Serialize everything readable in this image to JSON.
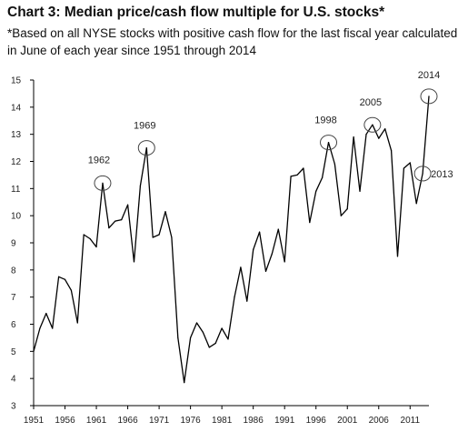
{
  "chart_data": {
    "type": "line",
    "title": "Chart 3: Median price/cash flow multiple for U.S. stocks*",
    "subtitle": "*Based on all NYSE stocks with positive cash flow for the last fiscal year calculated in June of each year since 1951 through 2014",
    "xlabel": "",
    "ylabel": "",
    "ylim": [
      3,
      15
    ],
    "xlim": [
      1951,
      2014
    ],
    "yticks": [
      3,
      4,
      5,
      6,
      7,
      8,
      9,
      10,
      11,
      12,
      13,
      14,
      15
    ],
    "xticks": [
      "1951",
      "1956",
      "1961",
      "1966",
      "1971",
      "1976",
      "1981",
      "1986",
      "1991",
      "1996",
      "2001",
      "2006",
      "2011"
    ],
    "grid": false,
    "series": [
      {
        "color": "#000000",
        "x": [
          1951,
          1952,
          1953,
          1954,
          1955,
          1956,
          1957,
          1958,
          1959,
          1960,
          1961,
          1962,
          1963,
          1964,
          1965,
          1966,
          1967,
          1968,
          1969,
          1970,
          1971,
          1972,
          1973,
          1974,
          1975,
          1976,
          1977,
          1978,
          1979,
          1980,
          1981,
          1982,
          1983,
          1984,
          1985,
          1986,
          1987,
          1988,
          1989,
          1990,
          1991,
          1992,
          1993,
          1994,
          1995,
          1996,
          1997,
          1998,
          1999,
          2000,
          2001,
          2002,
          2003,
          2004,
          2005,
          2006,
          2007,
          2008,
          2009,
          2010,
          2011,
          2012,
          2013,
          2014
        ],
        "values": [
          5.0,
          5.85,
          6.4,
          5.85,
          7.75,
          7.65,
          7.25,
          6.05,
          9.3,
          9.15,
          8.85,
          11.2,
          9.55,
          9.8,
          9.85,
          10.4,
          8.3,
          11.1,
          12.5,
          9.2,
          9.3,
          10.15,
          9.2,
          5.5,
          3.85,
          5.5,
          6.05,
          5.7,
          5.15,
          5.3,
          5.85,
          5.45,
          7.0,
          8.1,
          6.85,
          8.75,
          9.4,
          7.95,
          8.6,
          9.5,
          8.3,
          11.45,
          11.5,
          11.75,
          9.75,
          10.9,
          11.4,
          12.7,
          11.9,
          10.0,
          10.25,
          12.9,
          10.9,
          13.0,
          13.35,
          12.85,
          13.2,
          12.4,
          8.5,
          11.75,
          11.95,
          10.45,
          11.55,
          14.4
        ]
      }
    ],
    "annotations": [
      {
        "label": "1962",
        "x": 1962,
        "y": 11.2
      },
      {
        "label": "1969",
        "x": 1969,
        "y": 12.5
      },
      {
        "label": "1998",
        "x": 1998,
        "y": 12.7
      },
      {
        "label": "2005",
        "x": 2005,
        "y": 13.35
      },
      {
        "label": "2013",
        "x": 2013,
        "y": 11.55
      },
      {
        "label": "2014",
        "x": 2014,
        "y": 14.4
      }
    ]
  }
}
